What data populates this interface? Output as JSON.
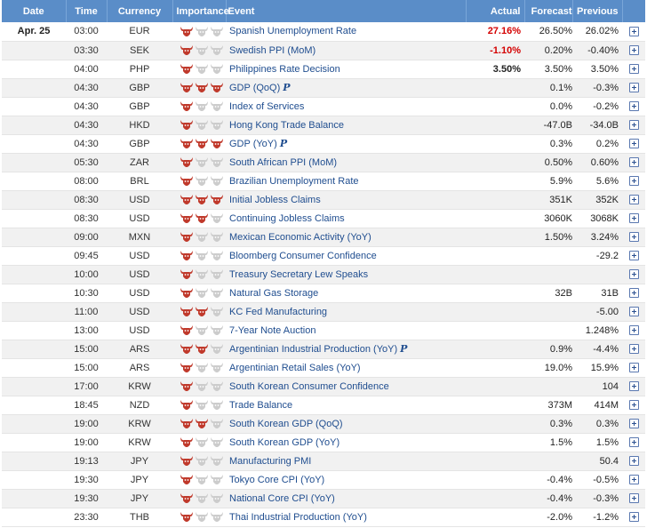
{
  "header": {
    "date": "Date",
    "time": "Time",
    "currency": "Currency",
    "importance": "Importance",
    "event": "Event",
    "actual": "Actual",
    "forecast": "Forecast",
    "previous": "Previous"
  },
  "colors": {
    "header_bg": "#5a8dc8",
    "bull_active": "#c0392b",
    "bull_inactive": "#cccccc",
    "actual_highlight": "#d40000",
    "link": "#1f4d8f"
  },
  "rows": [
    {
      "date": "Apr. 25",
      "time": "03:00",
      "currency": "EUR",
      "importance": 1,
      "event": "Spanish Unemployment Rate",
      "preliminary": false,
      "actual": "27.16%",
      "actual_red": true,
      "forecast": "26.50%",
      "previous": "26.02%"
    },
    {
      "date": "",
      "time": "03:30",
      "currency": "SEK",
      "importance": 1,
      "event": "Swedish PPI (MoM)",
      "preliminary": false,
      "actual": "-1.10%",
      "actual_red": true,
      "forecast": "0.20%",
      "previous": "-0.40%"
    },
    {
      "date": "",
      "time": "04:00",
      "currency": "PHP",
      "importance": 1,
      "event": "Philippines Rate Decision",
      "preliminary": false,
      "actual": "3.50%",
      "actual_red": false,
      "forecast": "3.50%",
      "previous": "3.50%"
    },
    {
      "date": "",
      "time": "04:30",
      "currency": "GBP",
      "importance": 3,
      "event": "GDP (QoQ)",
      "preliminary": true,
      "actual": "",
      "actual_red": false,
      "forecast": "0.1%",
      "previous": "-0.3%"
    },
    {
      "date": "",
      "time": "04:30",
      "currency": "GBP",
      "importance": 1,
      "event": "Index of Services",
      "preliminary": false,
      "actual": "",
      "actual_red": false,
      "forecast": "0.0%",
      "previous": "-0.2%"
    },
    {
      "date": "",
      "time": "04:30",
      "currency": "HKD",
      "importance": 1,
      "event": "Hong Kong Trade Balance",
      "preliminary": false,
      "actual": "",
      "actual_red": false,
      "forecast": "-47.0B",
      "previous": "-34.0B"
    },
    {
      "date": "",
      "time": "04:30",
      "currency": "GBP",
      "importance": 3,
      "event": "GDP (YoY)",
      "preliminary": true,
      "actual": "",
      "actual_red": false,
      "forecast": "0.3%",
      "previous": "0.2%"
    },
    {
      "date": "",
      "time": "05:30",
      "currency": "ZAR",
      "importance": 1,
      "event": "South African PPI (MoM)",
      "preliminary": false,
      "actual": "",
      "actual_red": false,
      "forecast": "0.50%",
      "previous": "0.60%"
    },
    {
      "date": "",
      "time": "08:00",
      "currency": "BRL",
      "importance": 1,
      "event": "Brazilian Unemployment Rate",
      "preliminary": false,
      "actual": "",
      "actual_red": false,
      "forecast": "5.9%",
      "previous": "5.6%"
    },
    {
      "date": "",
      "time": "08:30",
      "currency": "USD",
      "importance": 3,
      "event": "Initial Jobless Claims",
      "preliminary": false,
      "actual": "",
      "actual_red": false,
      "forecast": "351K",
      "previous": "352K"
    },
    {
      "date": "",
      "time": "08:30",
      "currency": "USD",
      "importance": 2,
      "event": "Continuing Jobless Claims",
      "preliminary": false,
      "actual": "",
      "actual_red": false,
      "forecast": "3060K",
      "previous": "3068K"
    },
    {
      "date": "",
      "time": "09:00",
      "currency": "MXN",
      "importance": 1,
      "event": "Mexican Economic Activity (YoY)",
      "preliminary": false,
      "actual": "",
      "actual_red": false,
      "forecast": "1.50%",
      "previous": "3.24%"
    },
    {
      "date": "",
      "time": "09:45",
      "currency": "USD",
      "importance": 1,
      "event": "Bloomberg Consumer Confidence",
      "preliminary": false,
      "actual": "",
      "actual_red": false,
      "forecast": "",
      "previous": "-29.2"
    },
    {
      "date": "",
      "time": "10:00",
      "currency": "USD",
      "importance": 1,
      "event": "Treasury Secretary Lew Speaks",
      "preliminary": false,
      "actual": "",
      "actual_red": false,
      "forecast": "",
      "previous": ""
    },
    {
      "date": "",
      "time": "10:30",
      "currency": "USD",
      "importance": 1,
      "event": "Natural Gas Storage",
      "preliminary": false,
      "actual": "",
      "actual_red": false,
      "forecast": "32B",
      "previous": "31B"
    },
    {
      "date": "",
      "time": "11:00",
      "currency": "USD",
      "importance": 2,
      "event": "KC Fed Manufacturing",
      "preliminary": false,
      "actual": "",
      "actual_red": false,
      "forecast": "",
      "previous": "-5.00"
    },
    {
      "date": "",
      "time": "13:00",
      "currency": "USD",
      "importance": 1,
      "event": "7-Year Note Auction",
      "preliminary": false,
      "actual": "",
      "actual_red": false,
      "forecast": "",
      "previous": "1.248%"
    },
    {
      "date": "",
      "time": "15:00",
      "currency": "ARS",
      "importance": 2,
      "event": "Argentinian Industrial Production (YoY)",
      "preliminary": true,
      "actual": "",
      "actual_red": false,
      "forecast": "0.9%",
      "previous": "-4.4%"
    },
    {
      "date": "",
      "time": "15:00",
      "currency": "ARS",
      "importance": 1,
      "event": "Argentinian Retail Sales (YoY)",
      "preliminary": false,
      "actual": "",
      "actual_red": false,
      "forecast": "19.0%",
      "previous": "15.9%"
    },
    {
      "date": "",
      "time": "17:00",
      "currency": "KRW",
      "importance": 1,
      "event": "South Korean Consumer Confidence",
      "preliminary": false,
      "actual": "",
      "actual_red": false,
      "forecast": "",
      "previous": "104"
    },
    {
      "date": "",
      "time": "18:45",
      "currency": "NZD",
      "importance": 1,
      "event": "Trade Balance",
      "preliminary": false,
      "actual": "",
      "actual_red": false,
      "forecast": "373M",
      "previous": "414M"
    },
    {
      "date": "",
      "time": "19:00",
      "currency": "KRW",
      "importance": 2,
      "event": "South Korean GDP (QoQ)",
      "preliminary": false,
      "actual": "",
      "actual_red": false,
      "forecast": "0.3%",
      "previous": "0.3%"
    },
    {
      "date": "",
      "time": "19:00",
      "currency": "KRW",
      "importance": 1,
      "event": "South Korean GDP (YoY)",
      "preliminary": false,
      "actual": "",
      "actual_red": false,
      "forecast": "1.5%",
      "previous": "1.5%"
    },
    {
      "date": "",
      "time": "19:13",
      "currency": "JPY",
      "importance": 1,
      "event": "Manufacturing PMI",
      "preliminary": false,
      "actual": "",
      "actual_red": false,
      "forecast": "",
      "previous": "50.4"
    },
    {
      "date": "",
      "time": "19:30",
      "currency": "JPY",
      "importance": 1,
      "event": "Tokyo Core CPI (YoY)",
      "preliminary": false,
      "actual": "",
      "actual_red": false,
      "forecast": "-0.4%",
      "previous": "-0.5%"
    },
    {
      "date": "",
      "time": "19:30",
      "currency": "JPY",
      "importance": 1,
      "event": "National Core CPI (YoY)",
      "preliminary": false,
      "actual": "",
      "actual_red": false,
      "forecast": "-0.4%",
      "previous": "-0.3%"
    },
    {
      "date": "",
      "time": "23:30",
      "currency": "THB",
      "importance": 1,
      "event": "Thai Industrial Production (YoY)",
      "preliminary": false,
      "actual": "",
      "actual_red": false,
      "forecast": "-2.0%",
      "previous": "-1.2%"
    }
  ]
}
